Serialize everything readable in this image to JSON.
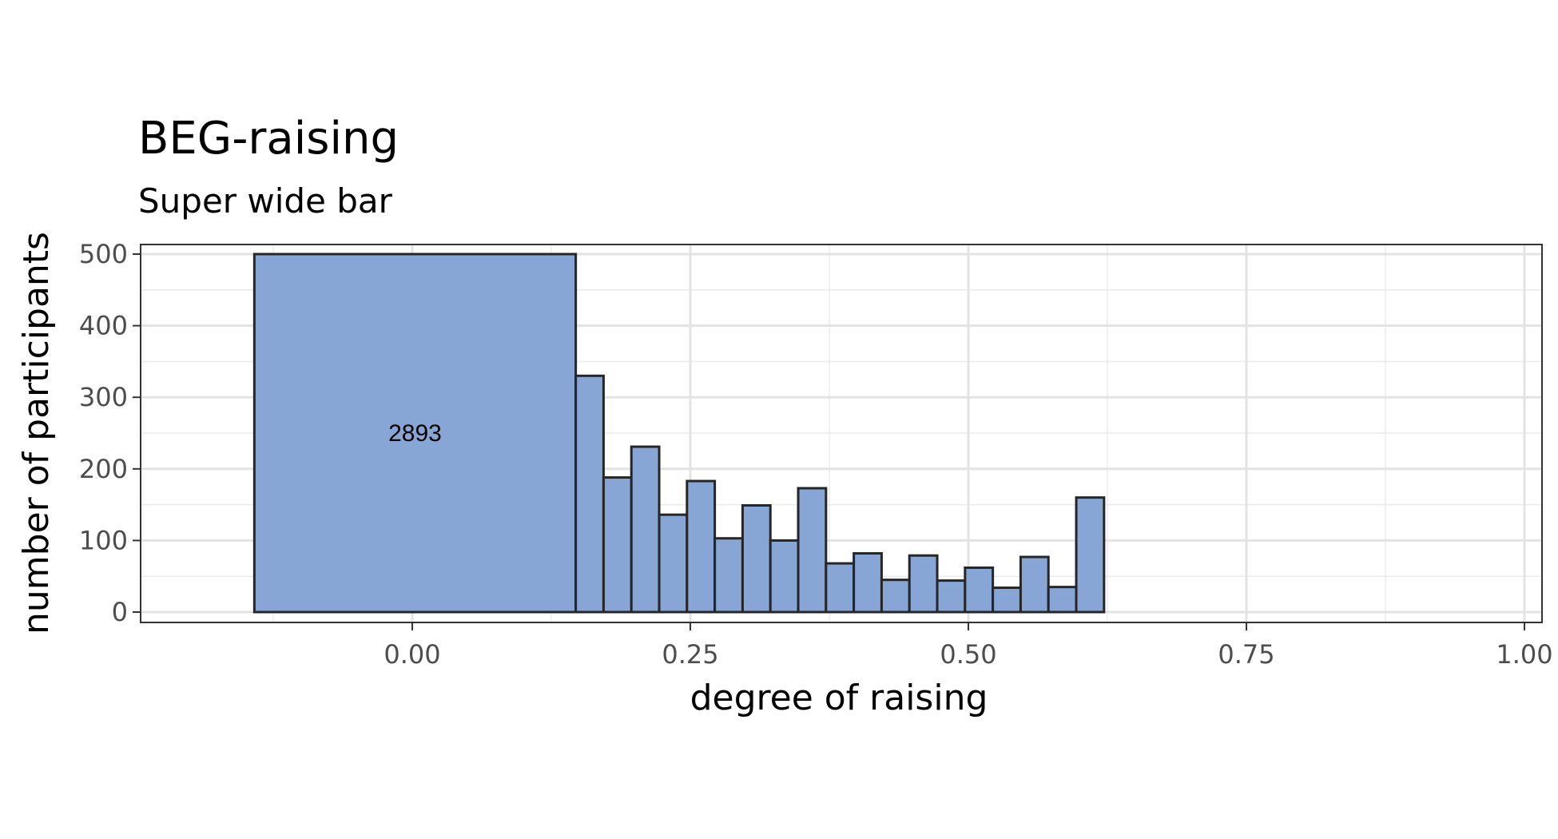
{
  "chart_data": {
    "type": "bar",
    "title": "BEG-raising",
    "subtitle": "Super wide bar",
    "xlabel": "degree of raising",
    "ylabel": "number of participants",
    "xlim": [
      -0.15,
      1.0
    ],
    "ylim": [
      0,
      500
    ],
    "x_ticks": [
      0.0,
      0.25,
      0.5,
      0.75,
      1.0
    ],
    "x_tick_labels": [
      "0.00",
      "0.25",
      "0.50",
      "0.75",
      "1.00"
    ],
    "y_ticks": [
      0,
      100,
      200,
      300,
      400,
      500
    ],
    "y_tick_labels": [
      "0",
      "100",
      "200",
      "300",
      "400",
      "500"
    ],
    "grid": true,
    "bar_fill": "#87a6d6",
    "bar_stroke": "#262626",
    "bars": [
      {
        "x0": -0.142,
        "x1": 0.147,
        "value": 500,
        "label": "2893"
      },
      {
        "x0": 0.147,
        "x1": 0.172,
        "value": 330
      },
      {
        "x0": 0.172,
        "x1": 0.197,
        "value": 188
      },
      {
        "x0": 0.197,
        "x1": 0.222,
        "value": 231
      },
      {
        "x0": 0.222,
        "x1": 0.247,
        "value": 136
      },
      {
        "x0": 0.247,
        "x1": 0.272,
        "value": 183
      },
      {
        "x0": 0.272,
        "x1": 0.297,
        "value": 103
      },
      {
        "x0": 0.297,
        "x1": 0.322,
        "value": 149
      },
      {
        "x0": 0.322,
        "x1": 0.347,
        "value": 100
      },
      {
        "x0": 0.347,
        "x1": 0.372,
        "value": 173
      },
      {
        "x0": 0.372,
        "x1": 0.397,
        "value": 68
      },
      {
        "x0": 0.397,
        "x1": 0.422,
        "value": 82
      },
      {
        "x0": 0.422,
        "x1": 0.447,
        "value": 45
      },
      {
        "x0": 0.447,
        "x1": 0.472,
        "value": 79
      },
      {
        "x0": 0.472,
        "x1": 0.497,
        "value": 44
      },
      {
        "x0": 0.497,
        "x1": 0.522,
        "value": 62
      },
      {
        "x0": 0.522,
        "x1": 0.547,
        "value": 34
      },
      {
        "x0": 0.547,
        "x1": 0.572,
        "value": 77
      },
      {
        "x0": 0.572,
        "x1": 0.597,
        "value": 35
      },
      {
        "x0": 0.597,
        "x1": 0.622,
        "value": 160
      }
    ]
  }
}
